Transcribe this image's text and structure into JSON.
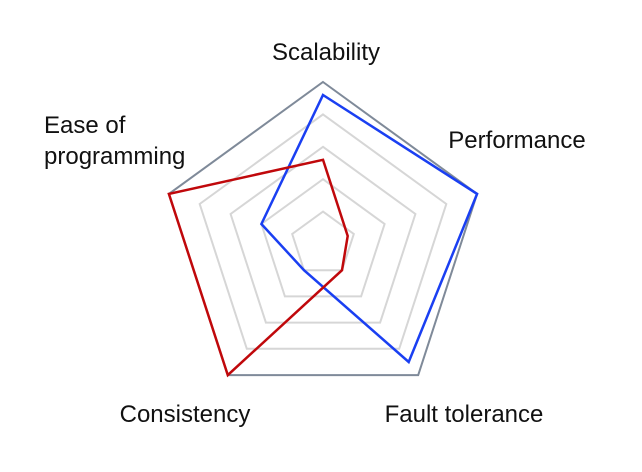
{
  "chart_data": {
    "type": "radar",
    "axes": [
      "Scalability",
      "Performance",
      "Fault tolerance",
      "Consistency",
      "Ease of programming"
    ],
    "axis_label_lines": [
      [
        "Scalability"
      ],
      [
        "Performance"
      ],
      [
        "Fault tolerance"
      ],
      [
        "Consistency"
      ],
      [
        "Ease of",
        "programming"
      ]
    ],
    "range": [
      0,
      5
    ],
    "grid_levels": 5,
    "grid": true,
    "legend": "none",
    "series": [
      {
        "color": "#1a3ff2",
        "values": [
          4.6,
          5.0,
          4.5,
          1.0,
          2.0
        ]
      },
      {
        "color": "#c0080b",
        "values": [
          2.6,
          0.8,
          1.0,
          5.0,
          5.0
        ]
      }
    ],
    "colors": {
      "grid": "#d6d6d6",
      "outer_ring": "#7f8a99"
    }
  }
}
